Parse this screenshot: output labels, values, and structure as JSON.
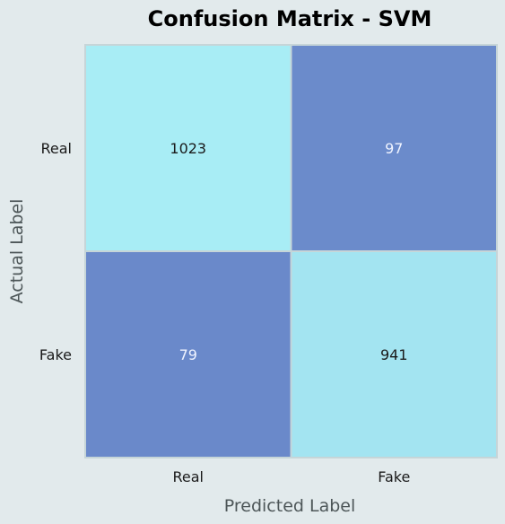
{
  "chart_data": {
    "type": "heatmap",
    "title": "Confusion Matrix - SVM",
    "xlabel": "Predicted Label",
    "ylabel": "Actual Label",
    "x_categories": [
      "Real",
      "Fake"
    ],
    "y_categories": [
      "Real",
      "Fake"
    ],
    "values": [
      [
        1023,
        97
      ],
      [
        79,
        941
      ]
    ],
    "colors": {
      "high": "#a8edf5",
      "low": "#6a89ca",
      "text_on_high": "#1a1a1a",
      "text_on_low": "#f0f4ff",
      "gridline": "#c6d5d8",
      "background": "#e2eaec"
    }
  }
}
